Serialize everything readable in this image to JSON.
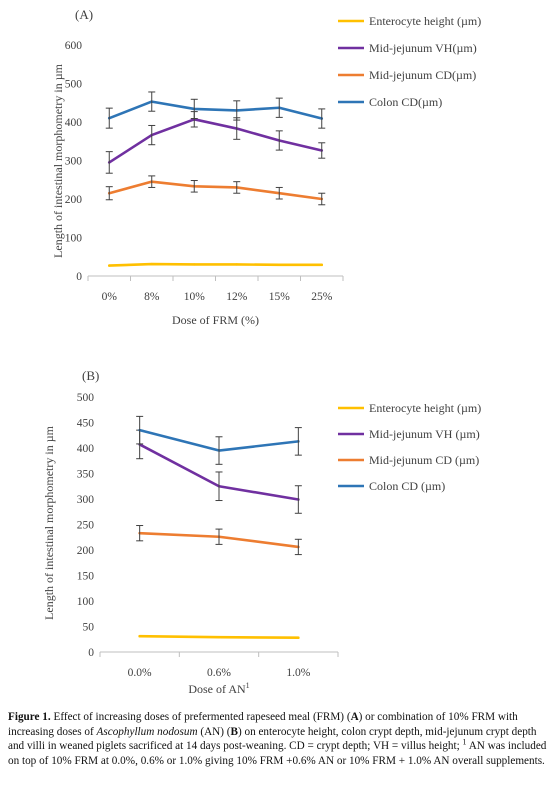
{
  "colors": {
    "enterocyte": "#FFC000",
    "vh": "#7030A0",
    "cd": "#ED7D31",
    "colon": "#2E75B6",
    "errorbar": "#404040",
    "axis": "#BFBFBF",
    "text": "#404040"
  },
  "chart_data": [
    {
      "type": "line",
      "panel_label": "(A)",
      "xlabel": "Dose of FRM (%)",
      "ylabel": "Length of intestinal morphometry in µm",
      "categories": [
        "0%",
        "8%",
        "10%",
        "12%",
        "15%",
        "25%"
      ],
      "ylim": [
        0,
        600
      ],
      "yticks": [
        0,
        100,
        200,
        300,
        400,
        500,
        600
      ],
      "grid": false,
      "legend_position": "top-right",
      "series": [
        {
          "name": "Enterocyte height (µm)",
          "color_key": "enterocyte",
          "values": [
            27,
            31,
            30,
            30,
            29,
            29
          ],
          "errors": null
        },
        {
          "name": "Mid-jejunum VH(µm)",
          "color_key": "vh",
          "values": [
            295,
            366,
            407,
            383,
            352,
            326
          ],
          "errors": [
            28,
            25,
            20,
            28,
            25,
            20
          ]
        },
        {
          "name": "Mid-jejunum CD(µm)",
          "color_key": "cd",
          "values": [
            215,
            245,
            233,
            230,
            215,
            200
          ],
          "errors": [
            17,
            15,
            15,
            15,
            15,
            15
          ]
        },
        {
          "name": "Colon CD(µm)",
          "color_key": "colon",
          "values": [
            410,
            453,
            434,
            430,
            437,
            409
          ],
          "errors": [
            26,
            25,
            25,
            25,
            25,
            25
          ]
        }
      ]
    },
    {
      "type": "line",
      "panel_label": "(B)",
      "xlabel": "Dose of AN",
      "xlabel_sup": "1",
      "ylabel": "Length of intestinal morphometry in µm",
      "categories": [
        "0.0%",
        "0.6%",
        "1.0%"
      ],
      "ylim": [
        0,
        500
      ],
      "yticks": [
        0,
        50,
        100,
        150,
        200,
        250,
        300,
        350,
        400,
        450,
        500
      ],
      "grid": false,
      "legend_position": "right",
      "series": [
        {
          "name": "Enterocyte height (µm)",
          "color_key": "enterocyte",
          "values": [
            31,
            29,
            28
          ],
          "errors": null
        },
        {
          "name": "Mid-jejunum VH (µm)",
          "color_key": "vh",
          "values": [
            407,
            325,
            299
          ],
          "errors": [
            28,
            28,
            27
          ]
        },
        {
          "name": "Mid-jejunum CD (µm)",
          "color_key": "cd",
          "values": [
            233,
            226,
            206
          ],
          "errors": [
            15,
            15,
            15
          ]
        },
        {
          "name": "Colon CD (µm)",
          "color_key": "colon",
          "values": [
            435,
            395,
            413
          ],
          "errors": [
            27,
            27,
            27
          ]
        }
      ]
    }
  ],
  "caption": {
    "label": "Figure 1.",
    "text_1": " Effect of increasing doses of prefermented rapeseed meal (FRM) (",
    "A": "A",
    "text_2": ") or combination of 10% FRM with increasing doses of ",
    "species": "Ascophyllum nodosum",
    "text_3": " (AN) (",
    "B": "B",
    "text_4": ") on enterocyte height, colon crypt depth, mid-jejunum crypt depth and villi in weaned piglets sacrificed at 14 days post-weaning. CD = crypt depth; VH = villus height; ",
    "sup": "1",
    "text_5": " AN was included on top of 10% FRM at 0.0%, 0.6% or 1.0% giving 10% FRM +0.6% AN or 10% FRM + 1.0% AN overall supplements."
  }
}
